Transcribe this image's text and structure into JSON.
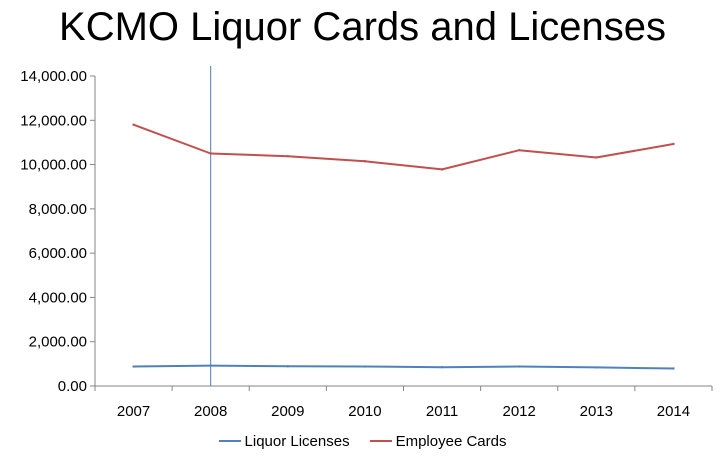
{
  "chart_data": {
    "type": "line",
    "title": "KCMO Liquor Cards and Licenses",
    "categories": [
      "2007",
      "2008",
      "2009",
      "2010",
      "2011",
      "2012",
      "2013",
      "2014"
    ],
    "series": [
      {
        "name": "Liquor Licenses",
        "color": "#4F81BD",
        "values": [
          880,
          920,
          890,
          880,
          850,
          880,
          840,
          790
        ]
      },
      {
        "name": "Employee Cards",
        "color": "#C0504D",
        "values": [
          11800,
          10500,
          10380,
          10150,
          9780,
          10650,
          10320,
          10930
        ]
      }
    ],
    "ylim": [
      0,
      14000
    ],
    "yticks": [
      "0.00",
      "2,000.00",
      "4,000.00",
      "6,000.00",
      "8,000.00",
      "10,000.00",
      "12,000.00",
      "14,000.00"
    ],
    "ytick_values": [
      0,
      2000,
      4000,
      6000,
      8000,
      10000,
      12000,
      14000
    ],
    "highlight_category": "2008",
    "xlabel": "",
    "ylabel": "",
    "legend_position": "bottom"
  }
}
